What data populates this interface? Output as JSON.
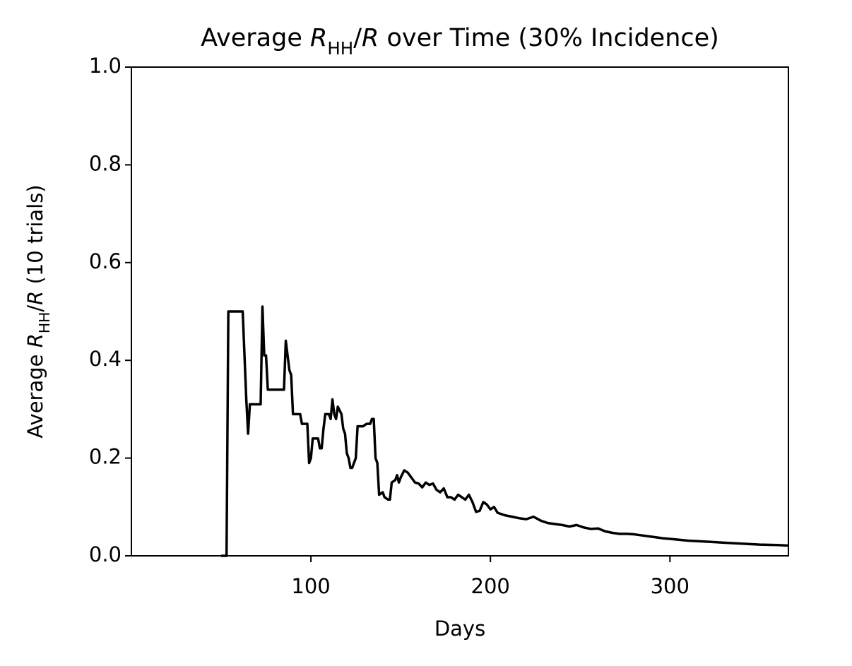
{
  "chart_data": {
    "type": "line",
    "title": [
      "Average ",
      "R",
      "HH",
      "/",
      "R",
      " over Time (30% Incidence)"
    ],
    "xlabel": "Days",
    "ylabel": [
      "Average ",
      "R",
      "HH",
      "/",
      "R",
      " (10 trials)"
    ],
    "x": [
      50,
      53,
      54,
      62,
      64,
      65,
      66,
      72,
      73,
      74,
      75,
      76,
      85,
      86,
      88,
      89,
      90,
      94,
      95,
      98,
      99,
      100,
      101,
      104,
      105,
      106,
      107,
      108,
      110,
      111,
      112,
      113,
      114,
      115,
      117,
      118,
      119,
      120,
      121,
      122,
      123,
      124,
      125,
      126,
      129,
      131,
      133,
      134,
      135,
      136,
      137,
      138,
      140,
      141,
      143,
      144,
      145,
      147,
      148,
      149,
      150,
      152,
      154,
      156,
      158,
      160,
      162,
      164,
      166,
      168,
      170,
      172,
      174,
      176,
      178,
      180,
      182,
      184,
      186,
      188,
      190,
      192,
      194,
      196,
      198,
      200,
      202,
      204,
      208,
      212,
      216,
      220,
      224,
      228,
      232,
      236,
      240,
      244,
      248,
      252,
      256,
      260,
      264,
      268,
      272,
      276,
      280,
      284,
      290,
      296,
      302,
      310,
      320,
      330,
      340,
      350,
      360,
      366
    ],
    "series": [
      {
        "name": "Average R_HH/R",
        "color": "#000000",
        "values": [
          0,
          0,
          0.5,
          0.5,
          0.32,
          0.25,
          0.31,
          0.31,
          0.51,
          0.41,
          0.41,
          0.34,
          0.34,
          0.44,
          0.38,
          0.37,
          0.29,
          0.29,
          0.27,
          0.27,
          0.19,
          0.2,
          0.24,
          0.24,
          0.22,
          0.22,
          0.26,
          0.29,
          0.29,
          0.28,
          0.32,
          0.29,
          0.28,
          0.305,
          0.29,
          0.26,
          0.25,
          0.21,
          0.2,
          0.18,
          0.18,
          0.19,
          0.2,
          0.265,
          0.265,
          0.27,
          0.27,
          0.28,
          0.28,
          0.2,
          0.19,
          0.125,
          0.13,
          0.12,
          0.115,
          0.115,
          0.15,
          0.155,
          0.165,
          0.15,
          0.16,
          0.175,
          0.17,
          0.16,
          0.15,
          0.148,
          0.14,
          0.15,
          0.145,
          0.148,
          0.135,
          0.13,
          0.138,
          0.12,
          0.12,
          0.115,
          0.125,
          0.12,
          0.115,
          0.125,
          0.11,
          0.09,
          0.092,
          0.11,
          0.105,
          0.095,
          0.1,
          0.088,
          0.083,
          0.08,
          0.077,
          0.075,
          0.08,
          0.072,
          0.067,
          0.065,
          0.063,
          0.06,
          0.063,
          0.058,
          0.055,
          0.056,
          0.05,
          0.047,
          0.045,
          0.045,
          0.044,
          0.042,
          0.039,
          0.036,
          0.034,
          0.031,
          0.029,
          0.027,
          0.025,
          0.023,
          0.022,
          0.021
        ]
      }
    ],
    "xlim": [
      0,
      366
    ],
    "ylim": [
      0,
      1
    ],
    "xticks": [
      100,
      200,
      300
    ],
    "yticks": [
      {
        "value": 0,
        "label": "0.0"
      },
      {
        "value": 0.2,
        "label": "0.2"
      },
      {
        "value": 0.4,
        "label": "0.4"
      },
      {
        "value": 0.6,
        "label": "0.6"
      },
      {
        "value": 0.8,
        "label": "0.8"
      },
      {
        "value": 1,
        "label": "1.0"
      }
    ],
    "grid": false
  }
}
